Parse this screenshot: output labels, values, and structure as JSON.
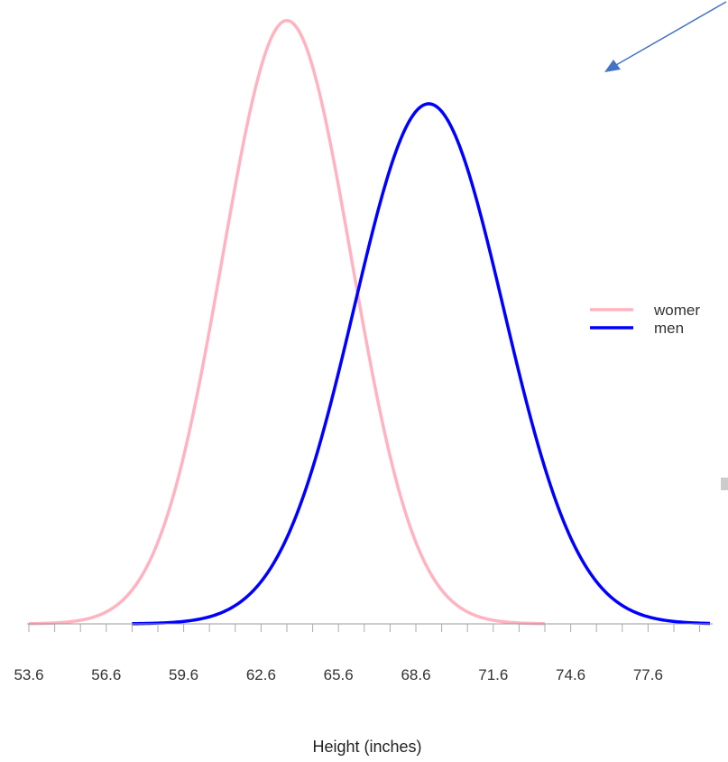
{
  "chart_data": {
    "type": "line",
    "xlabel": "Height (inches)",
    "ylabel": "",
    "xlim": [
      53.6,
      80.0
    ],
    "ylim": [
      0,
      0.16
    ],
    "x_ticks": [
      53.6,
      56.6,
      59.6,
      62.6,
      65.6,
      68.6,
      71.6,
      74.6,
      77.6
    ],
    "x_tick_labels": [
      "53.6",
      "56.6",
      "59.6",
      "62.6",
      "65.6",
      "68.6",
      "71.6",
      "74.6",
      "77.6"
    ],
    "minor_tick_step": 1.0,
    "grid": false,
    "legend": {
      "position": "right"
    },
    "series": [
      {
        "name": "womer",
        "color": "#ffb3c1",
        "mean": 63.6,
        "sd": 2.5,
        "x_range": [
          53.6,
          73.6
        ]
      },
      {
        "name": "men",
        "color": "#0000ff",
        "mean": 69.1,
        "sd": 2.9,
        "x_range": [
          57.6,
          80.0
        ]
      }
    ]
  },
  "annotation": {
    "type": "arrow",
    "color": "#4472c4"
  }
}
